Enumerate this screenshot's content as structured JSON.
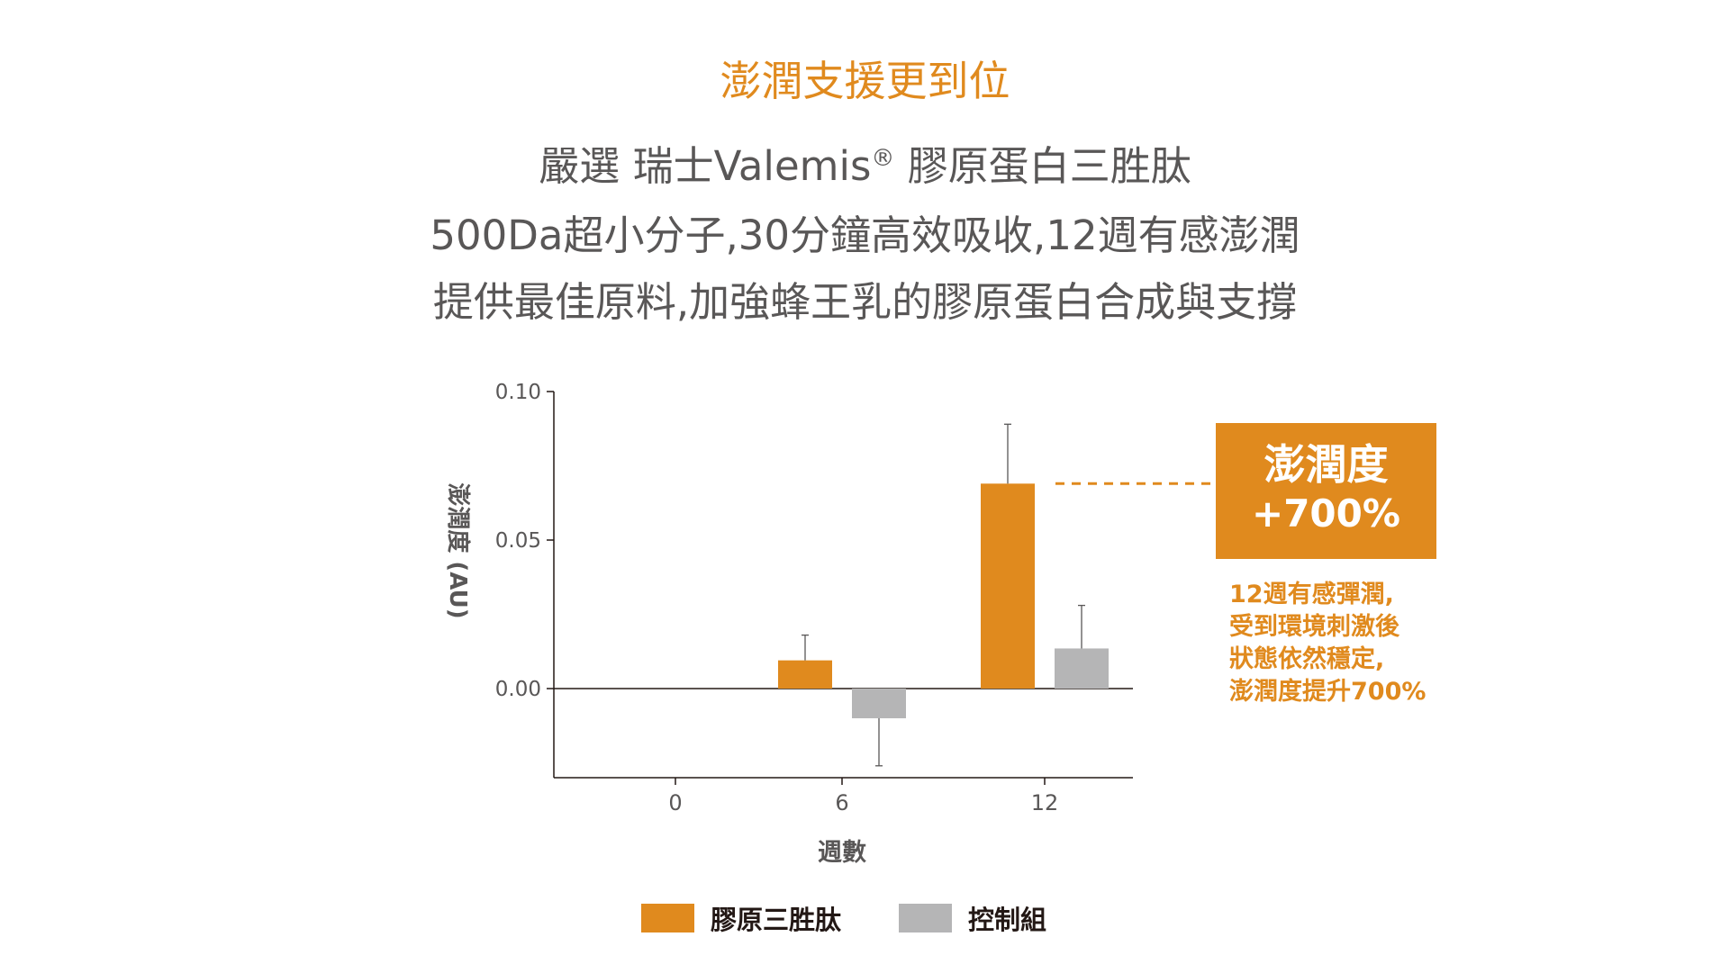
{
  "header": {
    "headline": "澎潤支援更到位",
    "line1_a": "嚴選 瑞士Valemis",
    "line1_reg": "®",
    "line1_b": " 膠原蛋白三胜肽",
    "line2": "500Da超小分子,30分鐘高效吸收,12週有感澎潤",
    "line3": "提供最佳原料,加強蜂王乳的膠原蛋白合成與支撐"
  },
  "callout": {
    "title": "澎潤度",
    "value": "+700%",
    "note_lines": [
      "12週有感彈潤,",
      "受到環境刺激後",
      "狀態依然穩定,",
      "澎潤度提升700%"
    ]
  },
  "colors": {
    "primary": "#E08A1E",
    "control": "#B5B5B6",
    "text": "#595757"
  },
  "chart_data": {
    "type": "bar",
    "categories": [
      "0",
      "6",
      "12"
    ],
    "series": [
      {
        "name": "膠原三胜肽",
        "values": [
          0.0,
          0.0095,
          0.069
        ],
        "error": [
          0.0,
          0.0085,
          0.02
        ],
        "color": "#E08A1E"
      },
      {
        "name": "控制組",
        "values": [
          0.0,
          -0.01,
          0.0135
        ],
        "error": [
          0.0,
          0.016,
          0.0145
        ],
        "color": "#B5B5B6"
      }
    ],
    "xlabel": "週數",
    "ylabel": "澎潤度 (AU)",
    "ylim": [
      -0.03,
      0.1
    ],
    "yticks": [
      "0.00",
      "0.05",
      "0.10"
    ],
    "ytick_values": [
      0.0,
      0.05,
      0.1
    ],
    "legend_position": "bottom"
  }
}
